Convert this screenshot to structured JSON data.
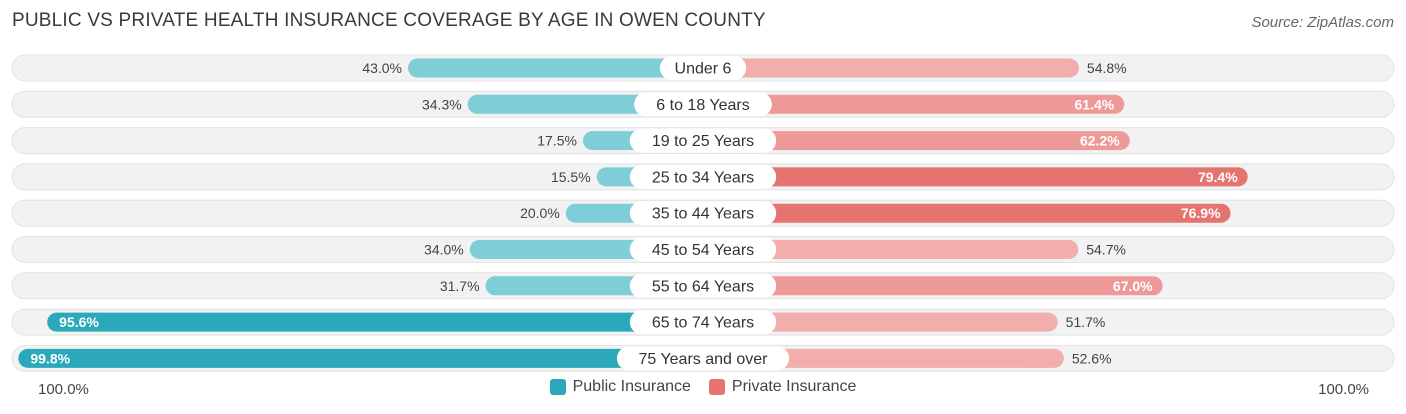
{
  "title": "PUBLIC VS PRIVATE HEALTH INSURANCE COVERAGE BY AGE IN OWEN COUNTY",
  "source": "Source: ZipAtlas.com",
  "axis": {
    "left_label": "100.0%",
    "right_label": "100.0%"
  },
  "legend": [
    {
      "name": "Public Insurance",
      "color": "#2ba8b9"
    },
    {
      "name": "Private Insurance",
      "color": "#e57370"
    }
  ],
  "chart_data": {
    "type": "bar",
    "orientation": "horizontal-diverging",
    "categories": [
      "Under 6",
      "6 to 18 Years",
      "19 to 25 Years",
      "25 to 34 Years",
      "35 to 44 Years",
      "45 to 54 Years",
      "55 to 64 Years",
      "65 to 74 Years",
      "75 Years and over"
    ],
    "series": [
      {
        "name": "Public Insurance",
        "values": [
          43.0,
          34.3,
          17.5,
          15.5,
          20.0,
          34.0,
          31.7,
          95.6,
          99.8
        ],
        "labels": [
          "43.0%",
          "34.3%",
          "17.5%",
          "15.5%",
          "20.0%",
          "34.0%",
          "31.7%",
          "95.6%",
          "99.8%"
        ]
      },
      {
        "name": "Private Insurance",
        "values": [
          54.8,
          61.4,
          62.2,
          79.4,
          76.9,
          54.7,
          67.0,
          51.7,
          52.6
        ],
        "labels": [
          "54.8%",
          "61.4%",
          "62.2%",
          "79.4%",
          "76.9%",
          "54.7%",
          "67.0%",
          "51.7%",
          "52.6%"
        ]
      }
    ],
    "xlim": [
      0,
      100
    ]
  }
}
